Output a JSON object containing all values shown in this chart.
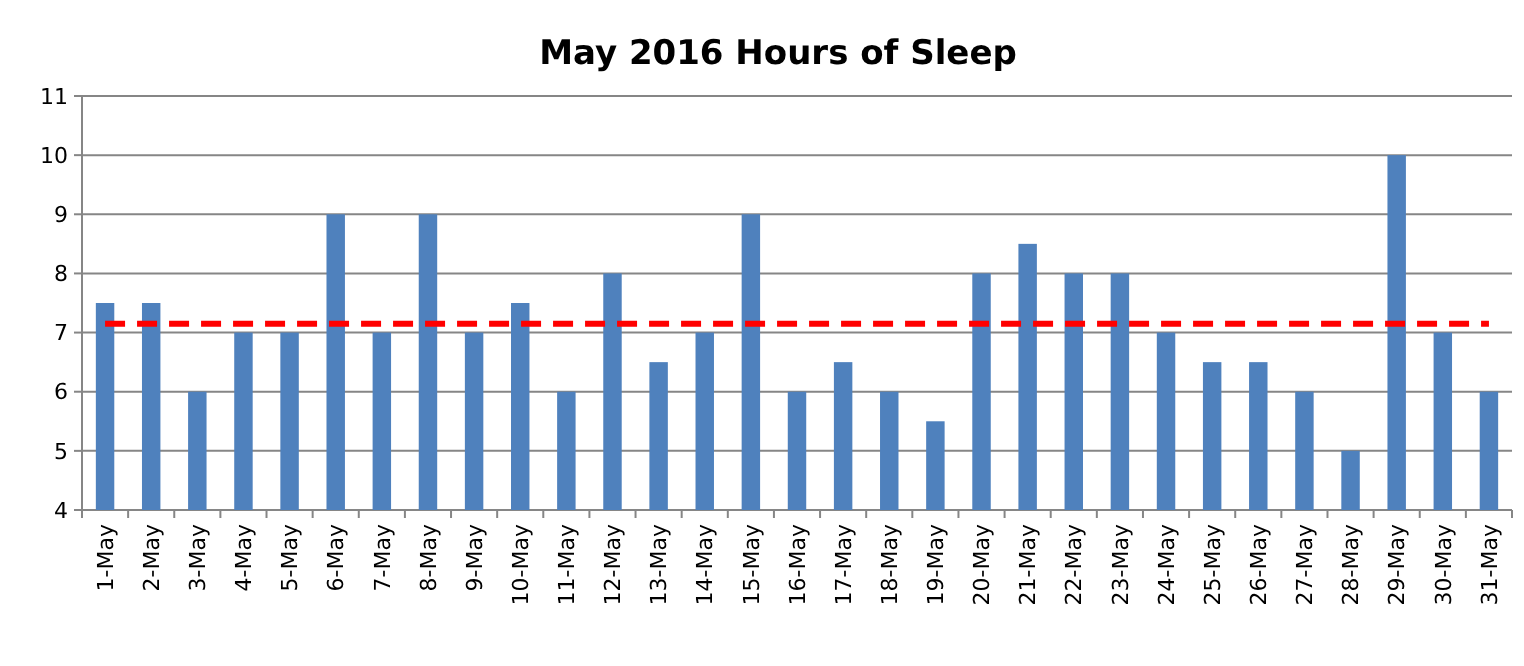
{
  "chart_data": {
    "type": "bar",
    "title": "May 2016 Hours of Sleep",
    "categories": [
      "1-May",
      "2-May",
      "3-May",
      "4-May",
      "5-May",
      "6-May",
      "7-May",
      "8-May",
      "9-May",
      "10-May",
      "11-May",
      "12-May",
      "13-May",
      "14-May",
      "15-May",
      "16-May",
      "17-May",
      "18-May",
      "19-May",
      "20-May",
      "21-May",
      "22-May",
      "23-May",
      "24-May",
      "25-May",
      "26-May",
      "27-May",
      "28-May",
      "29-May",
      "30-May",
      "31-May"
    ],
    "values": [
      7.5,
      7.5,
      6,
      7,
      7,
      9,
      7,
      9,
      7,
      7.5,
      6,
      8,
      6.5,
      7,
      9,
      6,
      6.5,
      6,
      5.5,
      8,
      8.5,
      8,
      8,
      7,
      6.5,
      6.5,
      6,
      5,
      10,
      7,
      6
    ],
    "color": "#4f81bd",
    "ylim": [
      4,
      11
    ],
    "yticks": [
      4,
      5,
      6,
      7,
      8,
      9,
      10,
      11
    ],
    "grid": "y",
    "ref_lines": [
      {
        "axis": "y",
        "value": 7.15,
        "color": "#ff0000",
        "line_style": "dashed"
      }
    ]
  }
}
